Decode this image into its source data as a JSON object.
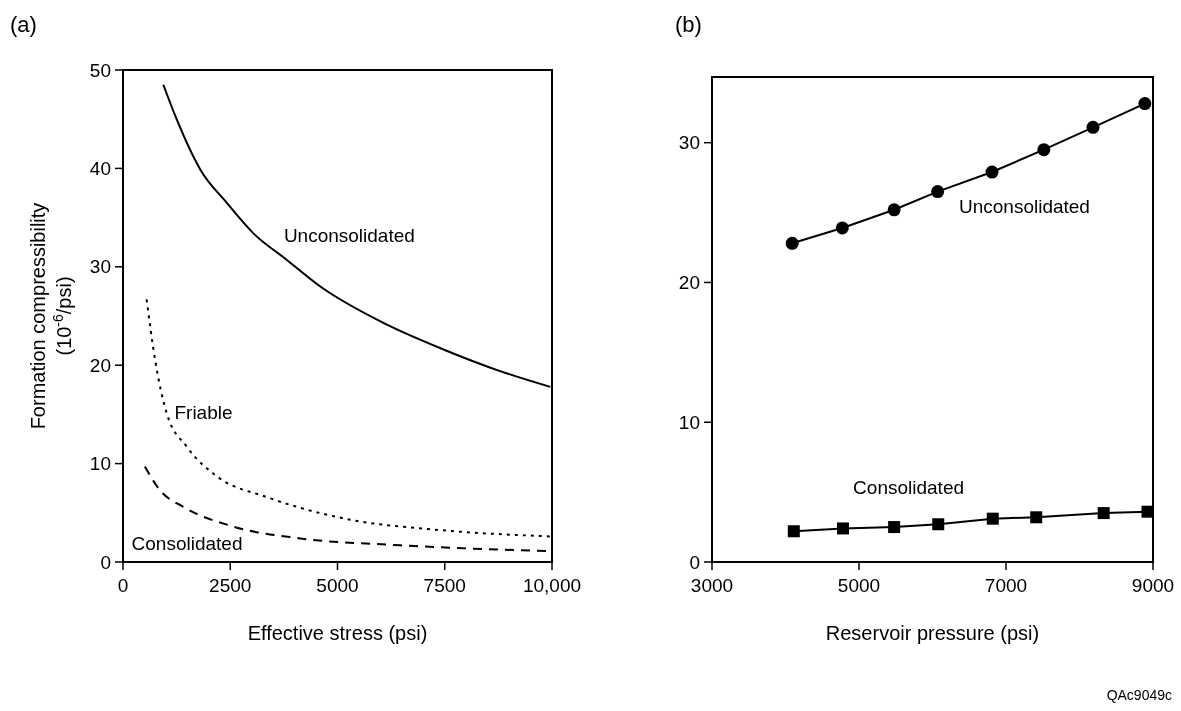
{
  "chart_data": [
    {
      "type": "line",
      "title": "(a)",
      "xlabel": "Effective stress (psi)",
      "ylabel": "Formation compressibility\n(10$^{-6}$/psi)",
      "xlim": [
        0,
        10000
      ],
      "xticks": [
        0,
        2500,
        5000,
        7500,
        {
          "value": 10000,
          "label": "10,000"
        }
      ],
      "ylim": [
        0,
        50
      ],
      "yticks": [
        0,
        10,
        20,
        30,
        40,
        50
      ],
      "grid": false,
      "marker": "none",
      "series": [
        {
          "name": "Unconsolidated",
          "color": "#000000",
          "line_style": "solid",
          "x": [
            940,
            1250,
            1800,
            2420,
            3040,
            3820,
            4600,
            6070,
            7470,
            8790,
            9960
          ],
          "values": [
            48.5,
            45.0,
            39.9,
            36.5,
            33.4,
            30.7,
            28.0,
            24.3,
            21.6,
            19.4,
            17.8
          ]
        },
        {
          "name": "Friable",
          "color": "#000000",
          "line_style": "dotted",
          "x": [
            550,
            750,
            1020,
            1490,
            2190,
            3350,
            5300,
            7240,
            9960
          ],
          "values": [
            26.7,
            20.5,
            15.1,
            11.7,
            8.7,
            6.6,
            4.3,
            3.3,
            2.6
          ]
        },
        {
          "name": "Consolidated",
          "color": "#000000",
          "line_style": "dashed",
          "x": [
            510,
            860,
            1410,
            2570,
            4130,
            6460,
            9960
          ],
          "values": [
            9.7,
            7.3,
            5.6,
            3.6,
            2.4,
            1.7,
            1.1
          ]
        }
      ]
    },
    {
      "type": "line",
      "title": "(b)",
      "xlabel": "Reservoir pressure (psi)",
      "annotations": [
        "QAc9049c"
      ],
      "xlim": [
        3000,
        9000
      ],
      "xticks": [
        3000,
        5000,
        7000,
        9000
      ],
      "ylim": [
        0,
        34.7
      ],
      "yticks": [
        0,
        10,
        20,
        30
      ],
      "grid": false,
      "line_style": "solid",
      "series": [
        {
          "name": "Unconsolidated",
          "color": "#000000",
          "marker": "circle",
          "x": [
            4091,
            4773,
            5478,
            6070,
            6810,
            7515,
            8184,
            8889
          ],
          "values": [
            22.8,
            23.9,
            25.2,
            26.5,
            27.9,
            29.5,
            31.1,
            32.8
          ]
        },
        {
          "name": "Consolidated",
          "color": "#000000",
          "marker": "square",
          "x": [
            4113,
            4782,
            5478,
            6078,
            6820,
            7411,
            8329,
            8925
          ],
          "values": [
            2.2,
            2.4,
            2.5,
            2.7,
            3.1,
            3.2,
            3.5,
            3.6
          ]
        }
      ]
    }
  ]
}
